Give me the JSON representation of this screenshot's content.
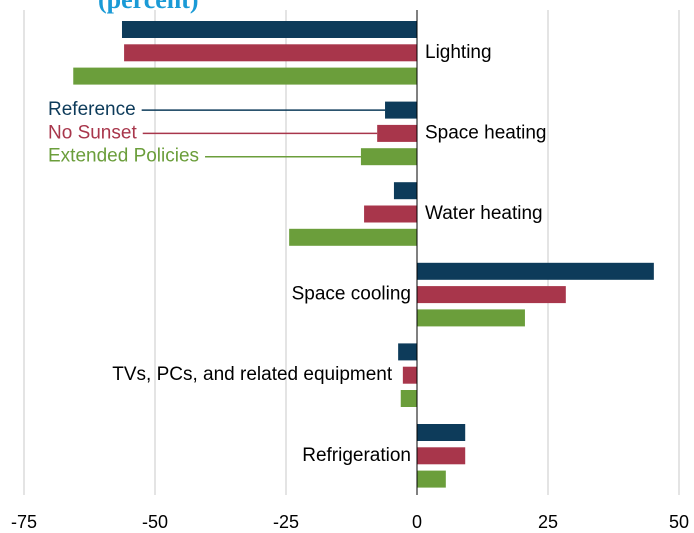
{
  "chart_data": {
    "type": "bar",
    "orientation": "horizontal",
    "title": "(percent)",
    "categories": [
      "Lighting",
      "Space heating",
      "Water heating",
      "Space cooling",
      "TVs, PCs, and related equipment",
      "Refrigeration"
    ],
    "series": [
      {
        "name": "Reference",
        "color": "#0d3b5a",
        "values": [
          -56.3,
          -6.1,
          -4.4,
          45.2,
          -3.6,
          9.2
        ]
      },
      {
        "name": "No Sunset",
        "color": "#a8364b",
        "values": [
          -55.9,
          -7.6,
          -10.1,
          28.4,
          -2.7,
          9.2
        ]
      },
      {
        "name": "Extended Policies",
        "color": "#6b9e3b",
        "values": [
          -65.6,
          -10.7,
          -24.4,
          20.6,
          -3.1,
          5.5
        ]
      }
    ],
    "xlim": [
      -75,
      50
    ],
    "xticks": [
      -75,
      -50,
      -25,
      0,
      25,
      50
    ],
    "grid": true
  }
}
